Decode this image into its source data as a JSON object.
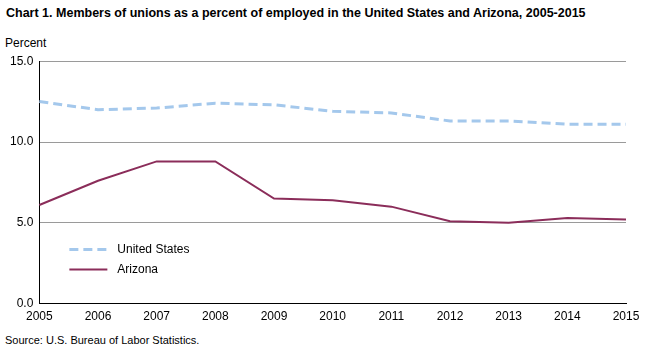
{
  "chart_data": {
    "type": "line",
    "title": "Chart 1. Members of unions as a percent of employed in the United States and Arizona, 2005-2015",
    "y_label": "Percent",
    "source": "Source: U.S. Bureau of Labor Statistics.",
    "categories": [
      "2005",
      "2006",
      "2007",
      "2008",
      "2009",
      "2010",
      "2011",
      "2012",
      "2013",
      "2014",
      "2015"
    ],
    "series": [
      {
        "name": "United States",
        "color": "#a4c8ec",
        "line_style": "dashed",
        "values": [
          12.5,
          12.0,
          12.1,
          12.4,
          12.3,
          11.9,
          11.8,
          11.3,
          11.3,
          11.1,
          11.1
        ]
      },
      {
        "name": "Arizona",
        "color": "#8b2d5a",
        "line_style": "solid",
        "values": [
          6.1,
          7.6,
          8.8,
          8.8,
          6.5,
          6.4,
          6.0,
          5.1,
          5.0,
          5.3,
          5.2
        ]
      }
    ],
    "ylim": [
      0,
      15
    ],
    "yticks": [
      {
        "value": 0,
        "label": "0.0"
      },
      {
        "value": 5,
        "label": "5.0"
      },
      {
        "value": 10,
        "label": "10.0"
      },
      {
        "value": 15,
        "label": "15.0"
      }
    ],
    "grid": true,
    "legend": "lower left"
  }
}
